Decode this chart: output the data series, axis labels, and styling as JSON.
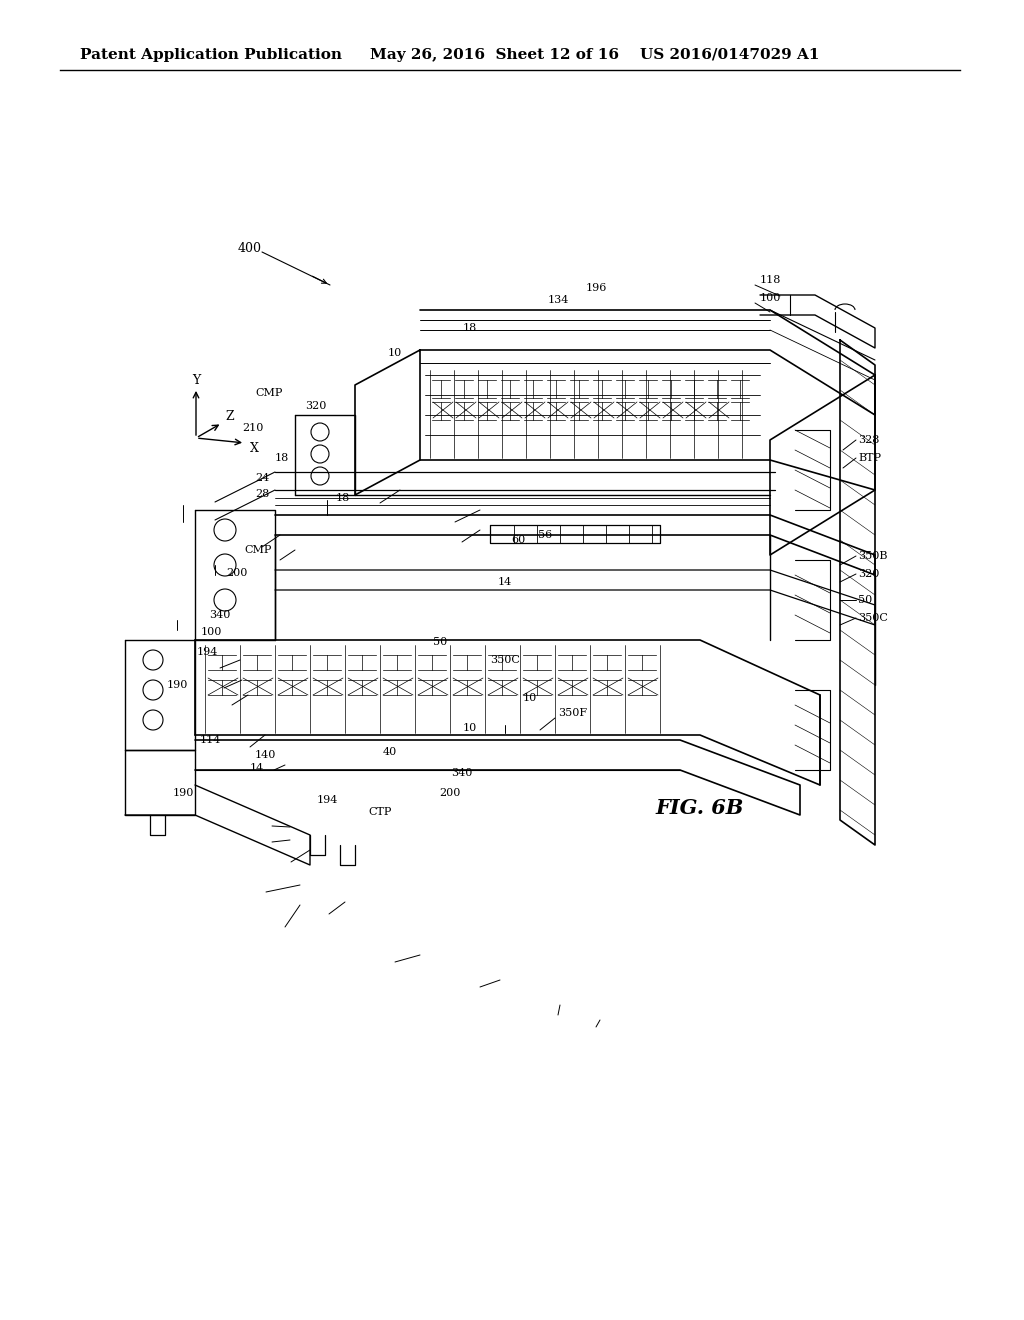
{
  "header_left": "Patent Application Publication",
  "header_mid": "May 26, 2016  Sheet 12 of 16",
  "header_right": "US 2016/0147029 A1",
  "fig_label": "FIG. 6B",
  "background_color": "#ffffff",
  "line_color": "#000000",
  "header_fontsize": 11,
  "fig_label_fontsize": 16
}
